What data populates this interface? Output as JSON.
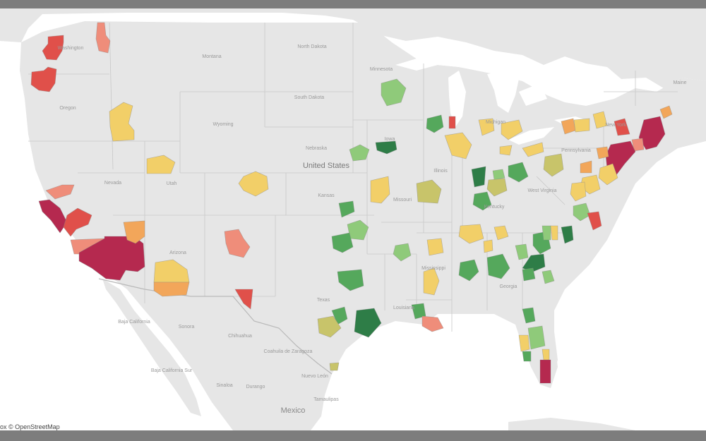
{
  "colors": {
    "land": "#e6e6e6",
    "water": "#ffffff",
    "frame": "#7d7d7d",
    "state_line": "#c9c9c9",
    "dark_red": "#b5294f",
    "red": "#e0504a",
    "salmon": "#ef8d7a",
    "orange": "#f2a65a",
    "yellow": "#f2cf68",
    "olive": "#c8c46a",
    "light_green": "#8fca7a",
    "green": "#55a85c",
    "dark_green": "#2e7d47"
  },
  "labels": {
    "country": "United States",
    "mexico": "Mexico",
    "states": [
      "Washington",
      "Oregon",
      "Montana",
      "North Dakota",
      "South Dakota",
      "Minnesota",
      "Wyoming",
      "Nebraska",
      "Nevada",
      "Utah",
      "Kansas",
      "Missouri",
      "Iowa",
      "Illinois",
      "Kentucky",
      "West Virginia",
      "Pennsylvania",
      "New York",
      "Maine",
      "Arizona",
      "Texas",
      "Mississippi",
      "Georgia",
      "Louisiana",
      "Michigan"
    ],
    "mexican_states": [
      "Baja California",
      "Sonora",
      "Chihuahua",
      "Coahuila de Zaragoza",
      "Nuevo León",
      "Baja California Sur",
      "Sinaloa",
      "Durango",
      "Tamaulipas"
    ]
  },
  "attribution": "ox © OpenStreetMap"
}
